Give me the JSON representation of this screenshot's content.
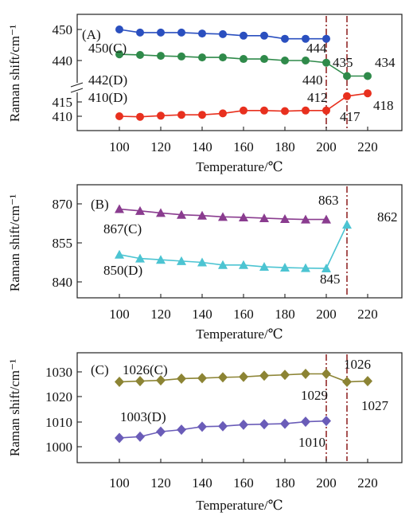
{
  "figure": {
    "y_axis_label": "Raman shift/cm⁻¹",
    "x_axis_label": "Temperature/℃"
  },
  "chart_data": [
    {
      "type": "line",
      "panel_label": "(A)",
      "x": [
        100,
        110,
        120,
        130,
        140,
        150,
        160,
        170,
        180,
        190,
        200,
        210,
        220
      ],
      "xticks": [
        100,
        120,
        140,
        160,
        180,
        200,
        220
      ],
      "xlabel": "Temperature/℃",
      "ylabel": "Raman shift/cm⁻¹",
      "y_axis_break": true,
      "yticks": [
        450,
        440,
        415,
        410
      ],
      "vertical_markers": [
        200,
        210
      ],
      "series": [
        {
          "color": "#2a4fbf",
          "marker": "circle",
          "values": [
            450,
            449,
            449,
            449,
            448.7,
            448.5,
            448,
            448,
            447,
            447,
            447,
            null,
            null
          ]
        },
        {
          "color": "#2f8a4a",
          "marker": "circle",
          "values": [
            442,
            441.8,
            441.5,
            441.3,
            441,
            441,
            440.5,
            440.5,
            440,
            440,
            439.3,
            435,
            435
          ]
        },
        {
          "color": "#e8301e",
          "marker": "circle",
          "values": [
            410,
            409.8,
            410.2,
            410.5,
            410.5,
            411,
            412,
            412,
            411.8,
            412,
            412,
            417,
            418
          ]
        }
      ],
      "annotations": [
        "450(C)",
        "444",
        "435",
        "434",
        "442(D)",
        "440",
        "410(D)",
        "412",
        "417",
        "418"
      ]
    },
    {
      "type": "line",
      "panel_label": "(B)",
      "x": [
        100,
        110,
        120,
        130,
        140,
        150,
        160,
        170,
        180,
        190,
        200,
        210
      ],
      "xticks": [
        100,
        120,
        140,
        160,
        180,
        200,
        220
      ],
      "xlabel": "Temperature/℃",
      "ylabel": "Raman shift/cm⁻¹",
      "ylim": [
        838,
        874
      ],
      "yticks": [
        870,
        855,
        840
      ],
      "vertical_markers": [
        210
      ],
      "series": [
        {
          "color": "#8a3c8f",
          "marker": "triangle",
          "values": [
            868,
            867.3,
            866.5,
            865.8,
            865.5,
            865,
            864.8,
            864.5,
            864.2,
            864,
            864,
            null
          ]
        },
        {
          "color": "#4cc4d2",
          "marker": "triangle",
          "values": [
            850.5,
            849,
            848.5,
            848,
            847.5,
            846.5,
            846.5,
            845.8,
            845.5,
            845.3,
            845.2,
            862
          ]
        }
      ],
      "annotations": [
        "863",
        "862",
        "867(C)",
        "850(D)",
        "845"
      ]
    },
    {
      "type": "line",
      "panel_label": "(C)",
      "x": [
        100,
        110,
        120,
        130,
        140,
        150,
        160,
        170,
        180,
        190,
        200,
        210,
        220
      ],
      "xticks": [
        100,
        120,
        140,
        160,
        180,
        200,
        220
      ],
      "xlabel": "Temperature/℃",
      "ylabel": "Raman shift/cm⁻¹",
      "ylim": [
        996,
        1036
      ],
      "yticks": [
        1030,
        1020,
        1010,
        1000
      ],
      "vertical_markers": [
        200,
        210
      ],
      "series": [
        {
          "color": "#8c8434",
          "marker": "diamond",
          "values": [
            1026,
            1026.3,
            1026.6,
            1027.3,
            1027.5,
            1027.8,
            1028,
            1028.5,
            1028.8,
            1029.2,
            1029.2,
            1026,
            1026.3
          ]
        },
        {
          "color": "#6a5cb8",
          "marker": "diamond",
          "values": [
            1003.5,
            1004,
            1006,
            1006.8,
            1008,
            1008.2,
            1008.8,
            1009,
            1009.2,
            1010,
            1010.3,
            null,
            null
          ]
        }
      ],
      "annotations": [
        "1026(C)",
        "1026",
        "1029",
        "1027",
        "1003(D)",
        "1010"
      ]
    }
  ]
}
